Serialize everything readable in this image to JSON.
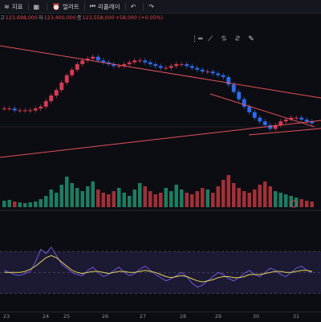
{
  "toolbar": {
    "items": [
      {
        "icon": "indicator-icon",
        "glyph": "≋",
        "label": "지표"
      },
      {
        "icon": "layout-icon",
        "glyph": "▦",
        "label": ""
      },
      {
        "icon": "alert-icon",
        "glyph": "⏰",
        "label": "얼러트"
      },
      {
        "icon": "replay-icon",
        "glyph": "⏮",
        "label": "리플레이"
      },
      {
        "icon": "undo-icon",
        "glyph": "↶",
        "label": ""
      },
      {
        "icon": "redo-icon",
        "glyph": "↷",
        "label": ""
      }
    ]
  },
  "ohlc": {
    "high_label": "고",
    "high": "123,698,000",
    "low_label": "저",
    "low": "123,400,000",
    "close_label": "종",
    "close": "123,558,000",
    "change": "+58,000 (+0.05%)"
  },
  "drawing_tools": [
    "hline-icon",
    "trend-tool-icon",
    "path-tool-icon",
    "pattern-tool-icon",
    "brush-tool-icon"
  ],
  "colors": {
    "background": "#0c0d12",
    "up": "#d63a55",
    "down": "#2b6cf0",
    "trendline": "#e2525c",
    "volume_up": "#1e8a6a",
    "volume_down": "#b3343c",
    "rsi_line": "#7a5ce8",
    "rsi_ma": "#e6d35a",
    "rsi_band": "#1c1a33"
  },
  "xaxis": {
    "labels": [
      "23",
      "24",
      "25",
      "26",
      "27",
      "28",
      "29",
      "30",
      "31"
    ]
  },
  "chart_data": {
    "type": "line",
    "title": "",
    "xlabel": "",
    "ylabel": "",
    "x_labels": [
      "23",
      "24",
      "25",
      "26",
      "27",
      "28",
      "29",
      "30",
      "31"
    ],
    "price_closes": [
      48,
      48,
      47,
      47,
      47,
      47,
      48,
      49,
      52,
      55,
      58,
      62,
      66,
      69,
      72,
      74,
      75,
      76,
      74,
      73,
      72,
      71,
      71,
      72,
      73,
      74,
      74,
      73,
      72,
      71,
      70,
      70,
      71,
      72,
      72,
      71,
      70,
      69,
      68,
      68,
      67,
      66,
      65,
      61,
      57,
      53,
      49,
      46,
      43,
      41,
      39,
      37,
      39,
      41,
      42,
      43,
      43,
      42,
      41,
      40
    ],
    "volume": [
      8,
      9,
      7,
      6,
      5,
      6,
      7,
      10,
      14,
      22,
      18,
      28,
      38,
      30,
      24,
      20,
      26,
      32,
      22,
      18,
      16,
      20,
      24,
      18,
      14,
      22,
      30,
      26,
      20,
      16,
      18,
      24,
      20,
      28,
      22,
      18,
      16,
      20,
      24,
      22,
      18,
      26,
      34,
      40,
      30,
      24,
      20,
      18,
      22,
      28,
      32,
      26,
      20,
      18,
      16,
      14,
      12,
      10,
      8,
      7
    ],
    "rsi": [
      52,
      50,
      48,
      47,
      49,
      51,
      60,
      72,
      68,
      74,
      66,
      58,
      54,
      50,
      48,
      47,
      52,
      55,
      50,
      46,
      48,
      52,
      55,
      50,
      47,
      49,
      53,
      56,
      52,
      48,
      45,
      42,
      44,
      47,
      50,
      46,
      40,
      36,
      38,
      42,
      46,
      50,
      48,
      44,
      42,
      45,
      49,
      52,
      48,
      46,
      50,
      54,
      52,
      48,
      46,
      50,
      54,
      56,
      52,
      50
    ],
    "rsi_ma": [
      50,
      50,
      50,
      50,
      51,
      53,
      56,
      60,
      64,
      66,
      64,
      60,
      56,
      52,
      50,
      49,
      50,
      51,
      51,
      50,
      49,
      50,
      51,
      51,
      50,
      50,
      51,
      52,
      51,
      50,
      48,
      46,
      45,
      46,
      47,
      46,
      44,
      42,
      41,
      42,
      43,
      45,
      46,
      46,
      45,
      45,
      46,
      48,
      48,
      48,
      49,
      50,
      51,
      51,
      50,
      50,
      51,
      52,
      52,
      51
    ],
    "rsi_bands": [
      30,
      50,
      70
    ],
    "grid": false
  }
}
